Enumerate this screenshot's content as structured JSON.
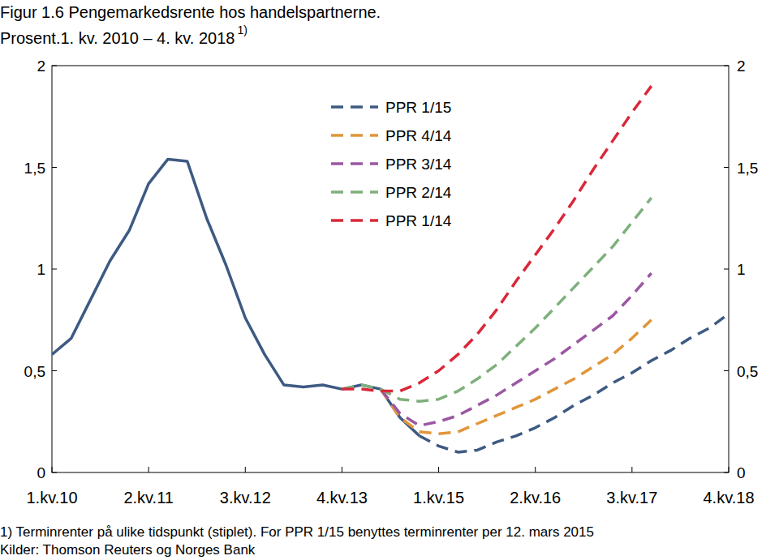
{
  "chart_data": {
    "type": "line",
    "title": "Figur 1.6 Pengemarkedsrente hos handelspartnerne.",
    "subtitle": "Prosent.1. kv. 2010 – 4. kv. 2018",
    "annotations": [
      "1)",
      "1) Terminrenter på ulike tidspunkt (stiplet). For PPR 1/15 benyttes terminrenter per 12. mars 2015",
      "Kilder: Thomson Reuters og Norges Bank"
    ],
    "categories": [
      "1.kv.10",
      null,
      null,
      null,
      null,
      "2.kv.11",
      null,
      null,
      null,
      null,
      "3.kv.12",
      null,
      null,
      null,
      null,
      "4.kv.13",
      null,
      null,
      null,
      null,
      "1.kv.15",
      null,
      null,
      null,
      null,
      "2.kv.16",
      null,
      null,
      null,
      null,
      "3.kv.17",
      null,
      null,
      null,
      null,
      "4.kv.18"
    ],
    "series": [
      {
        "color": "#3d5a82",
        "line_style": "solid",
        "values": [
          0.58,
          0.66,
          0.85,
          1.04,
          1.19,
          1.42,
          1.54,
          1.53,
          1.25,
          1.02,
          0.76,
          0.58,
          0.43,
          0.42,
          0.43,
          0.41,
          0.43,
          0.41,
          0.27,
          0.18,
          null,
          null,
          null,
          null,
          null,
          null,
          null,
          null,
          null,
          null,
          null,
          null,
          null,
          null,
          null,
          null
        ]
      },
      {
        "name": "PPR 1/15",
        "color": "#3d5a82",
        "line_style": "dashed",
        "values": [
          null,
          null,
          null,
          null,
          null,
          null,
          null,
          null,
          null,
          null,
          null,
          null,
          null,
          null,
          null,
          null,
          null,
          null,
          null,
          0.18,
          0.13,
          0.1,
          0.11,
          0.15,
          0.18,
          0.22,
          0.27,
          0.33,
          0.38,
          0.44,
          0.49,
          0.55,
          0.6,
          0.66,
          0.71,
          0.78
        ]
      },
      {
        "name": "PPR 4/14",
        "color": "#e0963a",
        "line_style": "dashed",
        "values": [
          null,
          null,
          null,
          null,
          null,
          null,
          null,
          null,
          null,
          null,
          null,
          null,
          null,
          null,
          null,
          null,
          null,
          0.41,
          0.27,
          0.2,
          0.19,
          0.2,
          0.24,
          0.28,
          0.32,
          0.36,
          0.41,
          0.46,
          0.52,
          0.58,
          0.66,
          0.75,
          null,
          null,
          null,
          null
        ]
      },
      {
        "name": "PPR 3/14",
        "color": "#9b57a3",
        "line_style": "dashed",
        "values": [
          null,
          null,
          null,
          null,
          null,
          null,
          null,
          null,
          null,
          null,
          null,
          null,
          null,
          null,
          null,
          null,
          null,
          0.41,
          0.29,
          0.23,
          0.25,
          0.28,
          0.33,
          0.38,
          0.44,
          0.5,
          0.56,
          0.63,
          0.7,
          0.77,
          0.87,
          0.98,
          null,
          null,
          null,
          null
        ]
      },
      {
        "name": "PPR 2/14",
        "color": "#7fb07c",
        "line_style": "dashed",
        "values": [
          null,
          null,
          null,
          null,
          null,
          null,
          null,
          null,
          null,
          null,
          null,
          null,
          null,
          null,
          null,
          0.41,
          0.43,
          0.41,
          0.36,
          0.35,
          0.36,
          0.4,
          0.46,
          0.53,
          0.62,
          0.71,
          0.81,
          0.91,
          1.01,
          1.11,
          1.23,
          1.35,
          null,
          null,
          null,
          null
        ]
      },
      {
        "name": "PPR 1/14",
        "color": "#d9283a",
        "line_style": "dashed",
        "values": [
          null,
          null,
          null,
          null,
          null,
          null,
          null,
          null,
          null,
          null,
          null,
          null,
          null,
          null,
          null,
          0.41,
          0.41,
          0.4,
          0.4,
          0.44,
          0.5,
          0.58,
          0.68,
          0.8,
          0.94,
          1.07,
          1.2,
          1.34,
          1.49,
          1.63,
          1.77,
          1.9,
          null,
          null,
          null,
          null
        ]
      }
    ],
    "ylim": [
      0,
      2
    ],
    "yticks": [
      0,
      {
        "value": 0.5,
        "label": "0,5"
      },
      1,
      {
        "value": 1.5,
        "label": "1,5"
      },
      2
    ],
    "grid": false,
    "legend": "top"
  }
}
